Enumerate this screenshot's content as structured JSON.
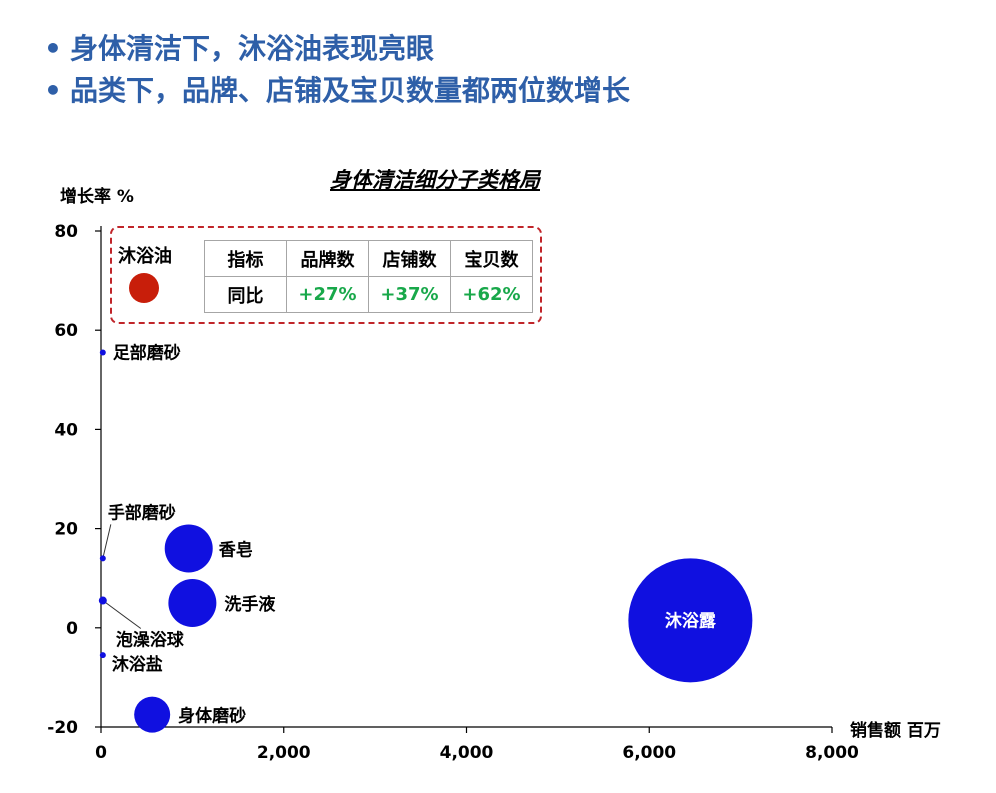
{
  "bullets": [
    "身体清洁下，沐浴油表现亮眼",
    "品类下，品牌、店铺及宝贝数量都两位数增长"
  ],
  "chart_data": {
    "type": "scatter",
    "title": "身体清洁细分子类格局",
    "xlabel": "销售额 百万",
    "ylabel": "增长率 %",
    "xlim": [
      0,
      8000
    ],
    "ylim": [
      -20,
      80
    ],
    "x_ticks": [
      "0",
      "2,000",
      "4,000",
      "6,000",
      "8,000"
    ],
    "y_ticks": [
      "-20",
      "0",
      "20",
      "40",
      "60",
      "80"
    ],
    "point_color": "#1010e0",
    "highlight_color": "#c81e0a",
    "points": [
      {
        "label": "沐浴露",
        "x": 6450,
        "y": 1.5,
        "size": 62
      },
      {
        "label": "香皂",
        "x": 960,
        "y": 16,
        "size": 24
      },
      {
        "label": "洗手液",
        "x": 1000,
        "y": 5,
        "size": 24
      },
      {
        "label": "身体磨砂",
        "x": 560,
        "y": -17.5,
        "size": 18
      },
      {
        "label": "足部磨砂",
        "x": 20,
        "y": 55.5,
        "size": 3
      },
      {
        "label": "手部磨砂",
        "x": 20,
        "y": 14,
        "size": 3
      },
      {
        "label": "泡澡浴球",
        "x": 20,
        "y": 5.5,
        "size": 4
      },
      {
        "label": "沐浴盐",
        "x": 20,
        "y": -5.5,
        "size": 3
      }
    ],
    "highlight": {
      "label": "沐浴油",
      "table": {
        "headers": [
          "指标",
          "品牌数",
          "店铺数",
          "宝贝数"
        ],
        "row": [
          "同比",
          "+27%",
          "+37%",
          "+62%"
        ],
        "positive_color": "#18a84a"
      }
    }
  }
}
